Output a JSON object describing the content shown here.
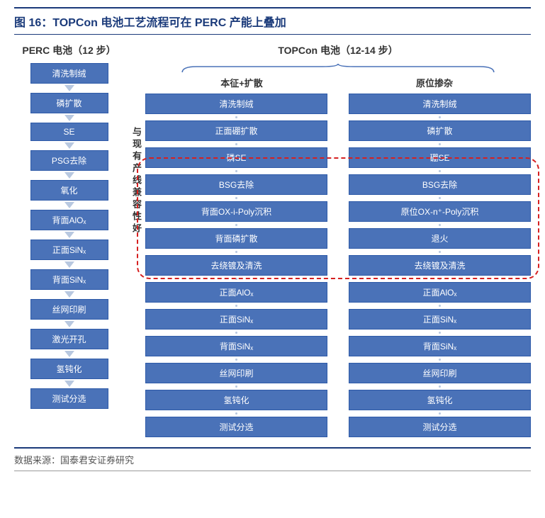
{
  "title": "图 16：TOPCon 电池工艺流程可在 PERC 产能上叠加",
  "perc": {
    "header": "PERC 电池（12 步）",
    "steps": [
      "清洗制绒",
      "磷扩散",
      "SE",
      "PSG去除",
      "氧化",
      "背面AlOₓ",
      "正面SiNₓ",
      "背面SiNₓ",
      "丝网印刷",
      "激光开孔",
      "氢钝化",
      "测试分选"
    ]
  },
  "topcon": {
    "header": "TOPCon 电池（12-14 步）",
    "sub_left": "本征+扩散",
    "sub_right": "原位掺杂",
    "sidenote": "与现有产线兼容性好",
    "left_steps": [
      "清洗制绒",
      "正面硼扩散",
      "磷SE",
      "BSG去除",
      "背面OX-i-Poly沉积",
      "背面磷扩散",
      "去绕镀及清洗",
      "正面AlOₓ",
      "正面SiNₓ",
      "背面SiNₓ",
      "丝网印刷",
      "氢钝化",
      "测试分选"
    ],
    "right_steps": [
      "清洗制绒",
      "磷扩散",
      "硼SE",
      "BSG去除",
      "原位OX-n⁺-Poly沉积",
      "退火",
      "去绕镀及清洗",
      "正面AlOₓ",
      "正面SiNₓ",
      "背面SiNₓ",
      "丝网印刷",
      "氢钝化",
      "测试分选"
    ]
  },
  "source": "数据来源：国泰君安证券研究",
  "colors": {
    "box_bg": "#4a72b8",
    "box_border": "#2e5aa8",
    "arrow": "#b8c8e0",
    "title": "#1a3a7a",
    "dashed": "#d62020"
  }
}
